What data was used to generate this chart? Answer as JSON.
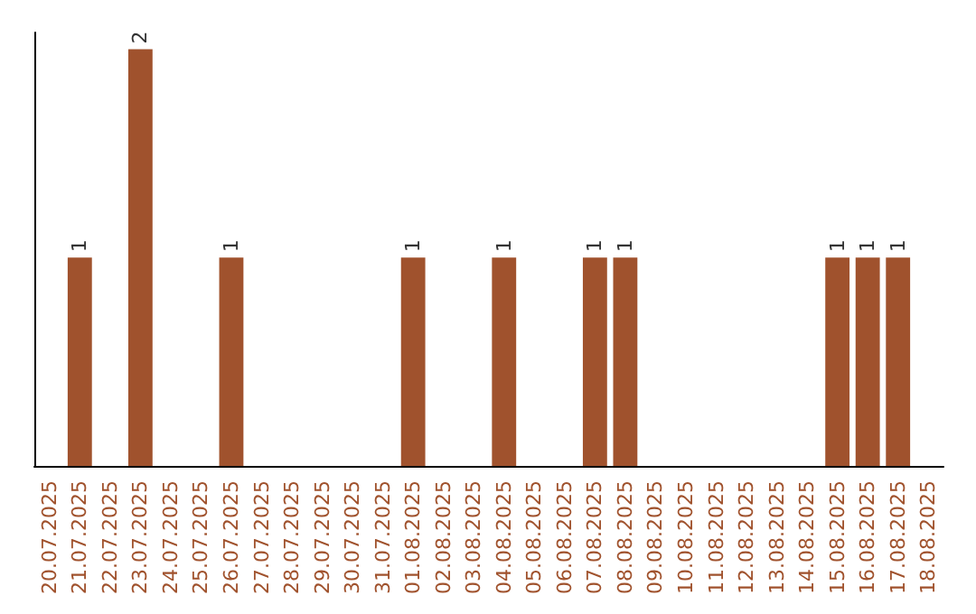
{
  "chart_data": {
    "type": "bar",
    "categories": [
      "20.07.2025",
      "21.07.2025",
      "22.07.2025",
      "23.07.2025",
      "24.07.2025",
      "25.07.2025",
      "26.07.2025",
      "27.07.2025",
      "28.07.2025",
      "29.07.2025",
      "30.07.2025",
      "31.07.2025",
      "01.08.2025",
      "02.08.2025",
      "03.08.2025",
      "04.08.2025",
      "05.08.2025",
      "06.08.2025",
      "07.08.2025",
      "08.08.2025",
      "09.08.2025",
      "10.08.2025",
      "11.08.2025",
      "12.08.2025",
      "13.08.2025",
      "14.08.2025",
      "15.08.2025",
      "16.08.2025",
      "17.08.2025",
      "18.08.2025"
    ],
    "values": [
      0,
      1,
      0,
      2,
      0,
      0,
      1,
      0,
      0,
      0,
      0,
      0,
      1,
      0,
      0,
      1,
      0,
      0,
      1,
      1,
      0,
      0,
      0,
      0,
      0,
      0,
      1,
      1,
      1,
      0
    ],
    "value_labels": [
      null,
      "1",
      null,
      "2",
      null,
      null,
      "1",
      null,
      null,
      null,
      null,
      null,
      "1",
      null,
      null,
      "1",
      null,
      null,
      "1",
      "1",
      null,
      null,
      null,
      null,
      null,
      null,
      "1",
      "1",
      "1",
      null
    ],
    "color": "#a0522d",
    "tick_labels": "x"
  }
}
